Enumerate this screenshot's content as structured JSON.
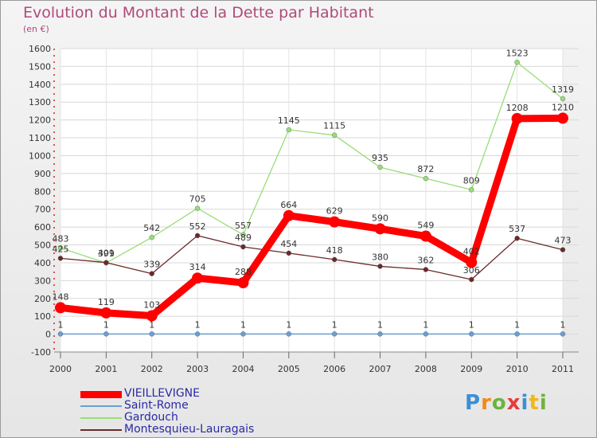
{
  "title": "Evolution du Montant de la Dette par Habitant",
  "subtitle": "(en €)",
  "logo": "Proxiti",
  "chart_data": {
    "type": "line",
    "title": "Evolution du Montant de la Dette par Habitant",
    "ylabel": "(en €)",
    "categories": [
      "2000",
      "2001",
      "2002",
      "2003",
      "2004",
      "2005",
      "2006",
      "2007",
      "2008",
      "2009",
      "2010",
      "2011"
    ],
    "ylim": [
      -100,
      1600
    ],
    "yticks": [
      -100,
      0,
      100,
      200,
      300,
      400,
      500,
      600,
      700,
      800,
      900,
      1000,
      1100,
      1200,
      1300,
      1400,
      1500,
      1600
    ],
    "grid": true,
    "legend_position": "bottom-left",
    "series": [
      {
        "name": "VIEILLEVIGNE",
        "color": "#ff0000",
        "values": [
          148,
          119,
          103,
          314,
          288,
          664,
          629,
          590,
          549,
          402,
          1208,
          1210
        ]
      },
      {
        "name": "Saint-Rome",
        "color": "#6a9fd4",
        "values": [
          1,
          1,
          1,
          1,
          1,
          1,
          1,
          1,
          1,
          1,
          1,
          1
        ]
      },
      {
        "name": "Gardouch",
        "color": "#99dd77",
        "values": [
          483,
          399,
          542,
          705,
          557,
          1145,
          1115,
          935,
          872,
          809,
          1523,
          1319
        ]
      },
      {
        "name": "Montesquieu-Lauragais",
        "color": "#6b2a2a",
        "values": [
          425,
          401,
          339,
          552,
          489,
          454,
          418,
          380,
          362,
          306,
          537,
          473
        ]
      }
    ]
  }
}
